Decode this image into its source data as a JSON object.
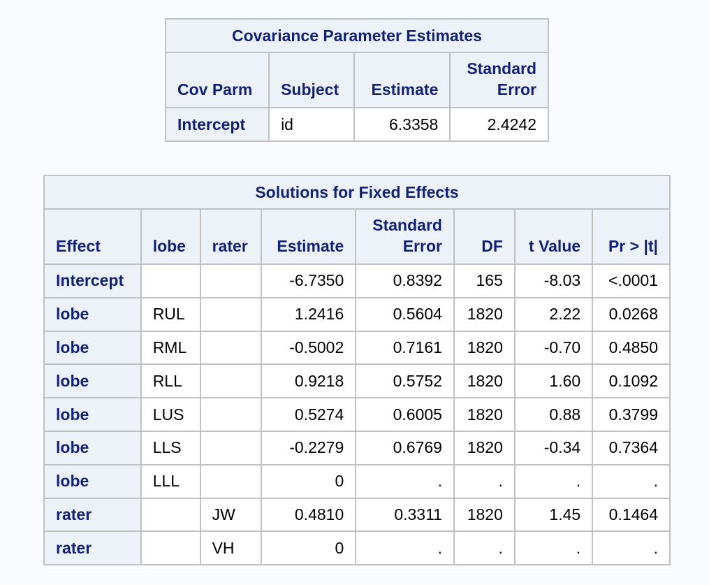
{
  "cov_table": {
    "title": "Covariance Parameter Estimates",
    "headers": [
      "Cov Parm",
      "Subject",
      "Estimate",
      "Standard Error"
    ],
    "rows": [
      {
        "cov_parm": "Intercept",
        "subject": "id",
        "estimate": "6.3358",
        "std_error": "2.4242"
      }
    ]
  },
  "fixed_table": {
    "title": "Solutions for Fixed Effects",
    "headers": [
      "Effect",
      "lobe",
      "rater",
      "Estimate",
      "Standard Error",
      "DF",
      "t Value",
      "Pr > |t|"
    ],
    "rows": [
      {
        "effect": "Intercept",
        "lobe": "",
        "rater": "",
        "estimate": "-6.7350",
        "std_error": "0.8392",
        "df": "165",
        "t_value": "-8.03",
        "p_value": "<.0001"
      },
      {
        "effect": "lobe",
        "lobe": "RUL",
        "rater": "",
        "estimate": "1.2416",
        "std_error": "0.5604",
        "df": "1820",
        "t_value": "2.22",
        "p_value": "0.0268"
      },
      {
        "effect": "lobe",
        "lobe": "RML",
        "rater": "",
        "estimate": "-0.5002",
        "std_error": "0.7161",
        "df": "1820",
        "t_value": "-0.70",
        "p_value": "0.4850"
      },
      {
        "effect": "lobe",
        "lobe": "RLL",
        "rater": "",
        "estimate": "0.9218",
        "std_error": "0.5752",
        "df": "1820",
        "t_value": "1.60",
        "p_value": "0.1092"
      },
      {
        "effect": "lobe",
        "lobe": "LUS",
        "rater": "",
        "estimate": "0.5274",
        "std_error": "0.6005",
        "df": "1820",
        "t_value": "0.88",
        "p_value": "0.3799"
      },
      {
        "effect": "lobe",
        "lobe": "LLS",
        "rater": "",
        "estimate": "-0.2279",
        "std_error": "0.6769",
        "df": "1820",
        "t_value": "-0.34",
        "p_value": "0.7364"
      },
      {
        "effect": "lobe",
        "lobe": "LLL",
        "rater": "",
        "estimate": "0",
        "std_error": ".",
        "df": ".",
        "t_value": ".",
        "p_value": "."
      },
      {
        "effect": "rater",
        "lobe": "",
        "rater": "JW",
        "estimate": "0.4810",
        "std_error": "0.3311",
        "df": "1820",
        "t_value": "1.45",
        "p_value": "0.1464"
      },
      {
        "effect": "rater",
        "lobe": "",
        "rater": "VH",
        "estimate": "0",
        "std_error": ".",
        "df": ".",
        "t_value": ".",
        "p_value": "."
      }
    ]
  },
  "colors": {
    "header_bg": "#edf2f9",
    "header_text": "#112277",
    "border": "#c1c1c1",
    "page_bg": "#fafbfe"
  }
}
